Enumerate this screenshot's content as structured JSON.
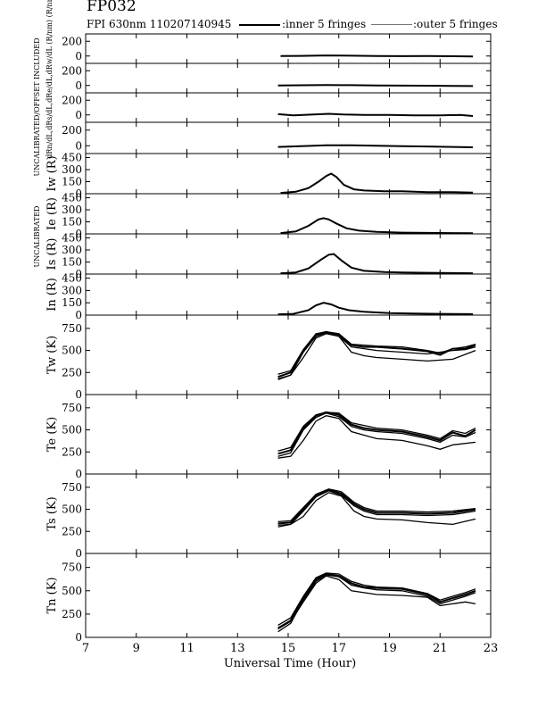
{
  "header": {
    "title": "FP032",
    "subtitle": "FPI 630nm 110207140945",
    "legend_inner": ":inner 5 fringes",
    "legend_outer": ":outer 5 fringes"
  },
  "side_notes": {
    "top": "UNCALIBRATED/OFFSET INCLUDED",
    "mid": "UNCALIBRATED"
  },
  "chart_data": {
    "type": "line",
    "xlabel": "Universal Time (Hour)",
    "xlim": [
      7,
      23
    ],
    "xticks": [
      7,
      9,
      11,
      13,
      15,
      17,
      19,
      21,
      23
    ],
    "panels": [
      {
        "key": "p1",
        "ylabel": "dRn/dL,dRs/dL,dRe/dL,dRw/dL (R/nm) (R/nm) (R/nm) (R/nm)",
        "ylim": [
          -100,
          300
        ],
        "yticks": [
          0,
          200
        ],
        "series": [
          {
            "x": [
              14.7,
              15.5,
              16.5,
              17.5,
              18.5,
              19.5,
              20.5,
              21.5,
              22.3
            ],
            "y": [
              0,
              2,
              8,
              4,
              0,
              -2,
              0,
              -3,
              -5
            ]
          }
        ]
      },
      {
        "key": "p2",
        "ylabel": "",
        "ylim": [
          -100,
          300
        ],
        "yticks": [
          0,
          200
        ],
        "series": [
          {
            "x": [
              14.6,
              15.5,
              16.5,
              17.5,
              18.5,
              19.5,
              20.5,
              21.5,
              22.3
            ],
            "y": [
              0,
              3,
              6,
              4,
              0,
              -2,
              -3,
              -5,
              -8
            ]
          }
        ]
      },
      {
        "key": "p3",
        "ylabel": "",
        "ylim": [
          -100,
          300
        ],
        "yticks": [
          0,
          200
        ],
        "series": [
          {
            "x": [
              14.6,
              15.2,
              16,
              16.6,
              17.2,
              18,
              19,
              20,
              21,
              21.8,
              22.3
            ],
            "y": [
              10,
              -5,
              5,
              15,
              5,
              0,
              0,
              -5,
              -5,
              0,
              -15
            ]
          }
        ]
      },
      {
        "key": "p4",
        "ylabel": "",
        "ylim": [
          -100,
          300
        ],
        "yticks": [
          0,
          200
        ],
        "series": [
          {
            "x": [
              14.6,
              15.5,
              16.5,
              17.5,
              18.5,
              19.5,
              20.5,
              21.5,
              22.3
            ],
            "y": [
              -15,
              -5,
              5,
              5,
              0,
              -5,
              -10,
              -15,
              -20
            ]
          }
        ]
      },
      {
        "key": "Iw",
        "ylabel": "Iw (R)",
        "ylim": [
          0,
          500
        ],
        "yticks": [
          0,
          150,
          300,
          450
        ],
        "yticklabels": [
          "0",
          "150",
          "300",
          "450"
        ],
        "series": [
          {
            "x": [
              14.7,
              15.3,
              15.8,
              16.2,
              16.5,
              16.7,
              16.9,
              17.2,
              17.6,
              18,
              18.8,
              19.5,
              20.5,
              21.5,
              22.3
            ],
            "y": [
              10,
              25,
              70,
              150,
              220,
              250,
              210,
              110,
              55,
              40,
              30,
              30,
              20,
              20,
              15
            ]
          }
        ]
      },
      {
        "key": "Ie",
        "ylabel": "Ie (R)",
        "ylim": [
          0,
          500
        ],
        "yticks": [
          0,
          150,
          300,
          450
        ],
        "yticklabels": [
          "0",
          "150",
          "300",
          "450"
        ],
        "series": [
          {
            "x": [
              14.7,
              15.3,
              15.8,
              16.2,
              16.4,
              16.6,
              16.9,
              17.3,
              17.8,
              18.5,
              19.5,
              20.5,
              21.5,
              22.3
            ],
            "y": [
              10,
              30,
              100,
              180,
              195,
              180,
              130,
              70,
              40,
              25,
              15,
              12,
              10,
              8
            ]
          }
        ]
      },
      {
        "key": "Is",
        "ylabel": "Is (R)",
        "ylim": [
          0,
          500
        ],
        "yticks": [
          0,
          150,
          300,
          450
        ],
        "yticklabels": [
          "0",
          "150",
          "300",
          "450"
        ],
        "series": [
          {
            "x": [
              14.7,
              15.3,
              15.8,
              16.3,
              16.6,
              16.8,
              17.1,
              17.5,
              18,
              18.8,
              19.5,
              20.5,
              21.5,
              22.3
            ],
            "y": [
              10,
              20,
              70,
              180,
              240,
              250,
              170,
              80,
              40,
              25,
              20,
              15,
              12,
              10
            ]
          }
        ]
      },
      {
        "key": "In",
        "ylabel": "In (R)",
        "ylim": [
          0,
          500
        ],
        "yticks": [
          0,
          150,
          300,
          450
        ],
        "yticklabels": [
          "0",
          "150",
          "300",
          "450"
        ],
        "series": [
          {
            "x": [
              14.6,
              15.2,
              15.8,
              16.1,
              16.4,
              16.7,
              17,
              17.4,
              18,
              19,
              20,
              21,
              22.3
            ],
            "y": [
              10,
              15,
              60,
              120,
              150,
              130,
              90,
              60,
              40,
              25,
              20,
              15,
              12
            ]
          }
        ]
      },
      {
        "key": "Tw",
        "ylabel": "Tw (K)",
        "ylim": [
          0,
          900
        ],
        "yticks": [
          0,
          250,
          500,
          750
        ],
        "yticklabels": [
          "0",
          "250",
          "500",
          "750"
        ],
        "series": [
          {
            "x": [
              14.6,
              15.1,
              15.6,
              16.1,
              16.5,
              17,
              17.5,
              18,
              18.5,
              19.5,
              20.5,
              21,
              21.5,
              22,
              22.4
            ],
            "y": [
              200,
              250,
              500,
              680,
              710,
              680,
              560,
              540,
              540,
              520,
              490,
              450,
              520,
              520,
              560
            ]
          },
          {
            "x": [
              14.6,
              15.1,
              15.6,
              16.1,
              16.5,
              17,
              17.5,
              18,
              18.5,
              19.5,
              20.5,
              21,
              21.5,
              22,
              22.4
            ],
            "y": [
              180,
              220,
              480,
              660,
              700,
              660,
              540,
              520,
              500,
              480,
              460,
              480,
              500,
              510,
              540
            ]
          },
          {
            "x": [
              14.6,
              15.1,
              15.6,
              16.1,
              16.5,
              17,
              17.5,
              18,
              18.5,
              19.5,
              20.5,
              21,
              21.5,
              22,
              22.4
            ],
            "y": [
              230,
              270,
              510,
              690,
              710,
              690,
              570,
              560,
              550,
              540,
              500,
              470,
              520,
              540,
              570
            ]
          },
          {
            "x": [
              14.6,
              15.1,
              15.6,
              16.1,
              16.5,
              17,
              17.5,
              18,
              18.5,
              19.5,
              20.5,
              21.5,
              22.4
            ],
            "y": [
              170,
              220,
              420,
              640,
              690,
              660,
              480,
              440,
              420,
              400,
              380,
              400,
              500
            ]
          }
        ]
      },
      {
        "key": "Te",
        "ylabel": "Te (K)",
        "ylim": [
          0,
          900
        ],
        "yticks": [
          0,
          250,
          500,
          750
        ],
        "yticklabels": [
          "0",
          "250",
          "500",
          "750"
        ],
        "series": [
          {
            "x": [
              14.6,
              15.1,
              15.6,
              16.1,
              16.5,
              17,
              17.5,
              18,
              18.5,
              19.5,
              20.5,
              21,
              21.5,
              22,
              22.4
            ],
            "y": [
              230,
              270,
              520,
              660,
              700,
              670,
              560,
              520,
              500,
              480,
              420,
              380,
              470,
              430,
              500
            ]
          },
          {
            "x": [
              14.6,
              15.1,
              15.6,
              16.1,
              16.5,
              17,
              17.5,
              18,
              18.5,
              19.5,
              20.5,
              21,
              21.5,
              22,
              22.4
            ],
            "y": [
              200,
              240,
              500,
              640,
              690,
              650,
              540,
              500,
              480,
              460,
              400,
              360,
              440,
              420,
              470
            ]
          },
          {
            "x": [
              14.6,
              15.1,
              15.6,
              16.1,
              16.5,
              17,
              17.5,
              18,
              18.5,
              19.5,
              20.5,
              21,
              21.5,
              22,
              22.4
            ],
            "y": [
              260,
              300,
              540,
              670,
              700,
              690,
              580,
              550,
              520,
              500,
              440,
              400,
              490,
              460,
              520
            ]
          },
          {
            "x": [
              14.6,
              15.1,
              15.6,
              16.1,
              16.5,
              17,
              17.5,
              18,
              18.5,
              19.5,
              20.5,
              21,
              21.5,
              22.4
            ],
            "y": [
              180,
              200,
              380,
              600,
              660,
              630,
              480,
              440,
              400,
              380,
              320,
              280,
              330,
              360
            ]
          }
        ]
      },
      {
        "key": "Ts",
        "ylabel": "Ts (K)",
        "ylim": [
          0,
          900
        ],
        "yticks": [
          0,
          250,
          500,
          750
        ],
        "yticklabels": [
          "0",
          "250",
          "500",
          "750"
        ],
        "series": [
          {
            "x": [
              14.6,
              15.1,
              15.6,
              16.1,
              16.6,
              17.1,
              17.6,
              18,
              18.5,
              19.5,
              20.5,
              21.5,
              22.4
            ],
            "y": [
              340,
              350,
              500,
              660,
              720,
              680,
              560,
              500,
              460,
              460,
              450,
              460,
              500
            ]
          },
          {
            "x": [
              14.6,
              15.1,
              15.6,
              16.1,
              16.6,
              17.1,
              17.6,
              18,
              18.5,
              19.5,
              20.5,
              21.5,
              22.4
            ],
            "y": [
              300,
              330,
              480,
              640,
              710,
              660,
              540,
              480,
              440,
              440,
              430,
              440,
              480
            ]
          },
          {
            "x": [
              14.6,
              15.1,
              15.6,
              16.1,
              16.6,
              17.1,
              17.6,
              18,
              18.5,
              19.5,
              20.5,
              21.5,
              22.4
            ],
            "y": [
              360,
              370,
              520,
              670,
              730,
              700,
              580,
              520,
              480,
              480,
              470,
              480,
              510
            ]
          },
          {
            "x": [
              14.6,
              15.1,
              15.6,
              16.1,
              16.6,
              17.1,
              17.6,
              18,
              18.5,
              19.5,
              20.5,
              21.5,
              22.4
            ],
            "y": [
              320,
              330,
              420,
              600,
              690,
              650,
              480,
              420,
              390,
              380,
              350,
              330,
              390
            ]
          }
        ]
      },
      {
        "key": "Tn",
        "ylabel": "Tn (K)",
        "ylim": [
          0,
          900
        ],
        "yticks": [
          0,
          250,
          500,
          750
        ],
        "yticklabels": [
          "0",
          "250",
          "500",
          "750"
        ],
        "series": [
          {
            "x": [
              14.6,
              15.1,
              15.6,
              16.1,
              16.5,
              17,
              17.5,
              18,
              18.5,
              19.5,
              20.5,
              21,
              21.5,
              22,
              22.4
            ],
            "y": [
              100,
              180,
              420,
              620,
              680,
              660,
              580,
              540,
              530,
              520,
              460,
              380,
              420,
              460,
              500
            ]
          },
          {
            "x": [
              14.6,
              15.1,
              15.6,
              16.1,
              16.5,
              17,
              17.5,
              18,
              18.5,
              19.5,
              20.5,
              21,
              21.5,
              22,
              22.4
            ],
            "y": [
              60,
              150,
              400,
              600,
              670,
              650,
              560,
              530,
              510,
              500,
              440,
              360,
              400,
              440,
              480
            ]
          },
          {
            "x": [
              14.6,
              15.1,
              15.6,
              16.1,
              16.5,
              17,
              17.5,
              18,
              18.5,
              19.5,
              20.5,
              21,
              21.5,
              22,
              22.4
            ],
            "y": [
              130,
              210,
              440,
              640,
              690,
              680,
              600,
              560,
              540,
              530,
              470,
              400,
              440,
              480,
              520
            ]
          },
          {
            "x": [
              14.6,
              15.1,
              15.6,
              16.1,
              16.5,
              17,
              17.5,
              18,
              18.5,
              19.5,
              20.5,
              21,
              21.5,
              22,
              22.4
            ],
            "y": [
              90,
              170,
              380,
              580,
              660,
              620,
              500,
              480,
              460,
              450,
              430,
              340,
              360,
              380,
              360
            ]
          }
        ]
      }
    ]
  }
}
